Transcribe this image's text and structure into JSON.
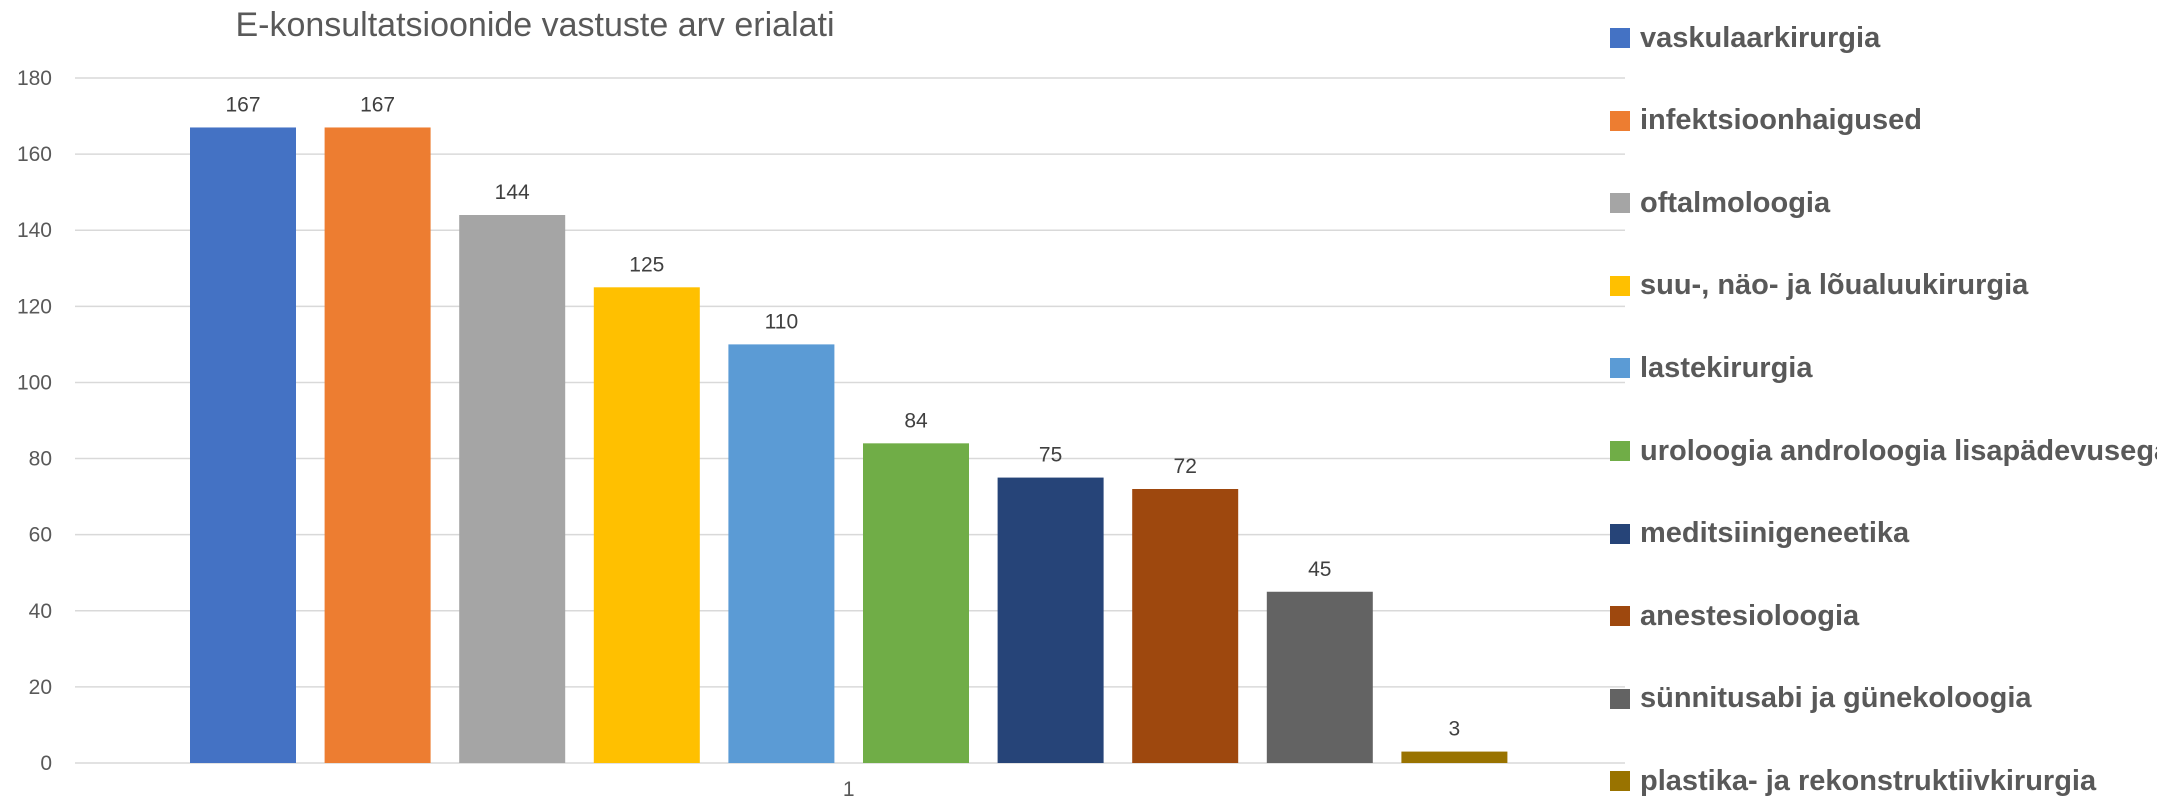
{
  "chart_data": {
    "type": "bar",
    "title": "E-konsultatsioonide vastuste arv erialati",
    "categories": [
      "1"
    ],
    "xlabel": "",
    "ylabel": "",
    "ylim": [
      0,
      180
    ],
    "yticks": [
      0,
      20,
      40,
      60,
      80,
      100,
      120,
      140,
      160,
      180
    ],
    "grid": true,
    "legend_position": "right",
    "series": [
      {
        "name": "vaskulaarkirurgia",
        "values": [
          167
        ],
        "color": "#4472C4"
      },
      {
        "name": "infektsioonhaigused",
        "values": [
          167
        ],
        "color": "#ED7D31"
      },
      {
        "name": "oftalmoloogia",
        "values": [
          144
        ],
        "color": "#A5A5A5"
      },
      {
        "name": "suu-, näo- ja lõualuukirurgia",
        "values": [
          125
        ],
        "color": "#FFC000"
      },
      {
        "name": "lastekirurgia",
        "values": [
          110
        ],
        "color": "#5B9BD5"
      },
      {
        "name": "uroloogia androloogia lisapädevusega",
        "values": [
          84
        ],
        "color": "#70AD47"
      },
      {
        "name": "meditsiinigeneetika",
        "values": [
          75
        ],
        "color": "#264478"
      },
      {
        "name": "anestesioloogia",
        "values": [
          72
        ],
        "color": "#9E480E"
      },
      {
        "name": "sünnitusabi ja günekoloogia",
        "values": [
          45
        ],
        "color": "#636363"
      },
      {
        "name": "plastika- ja rekonstruktiivkirurgia",
        "values": [
          3
        ],
        "color": "#997300"
      }
    ]
  }
}
